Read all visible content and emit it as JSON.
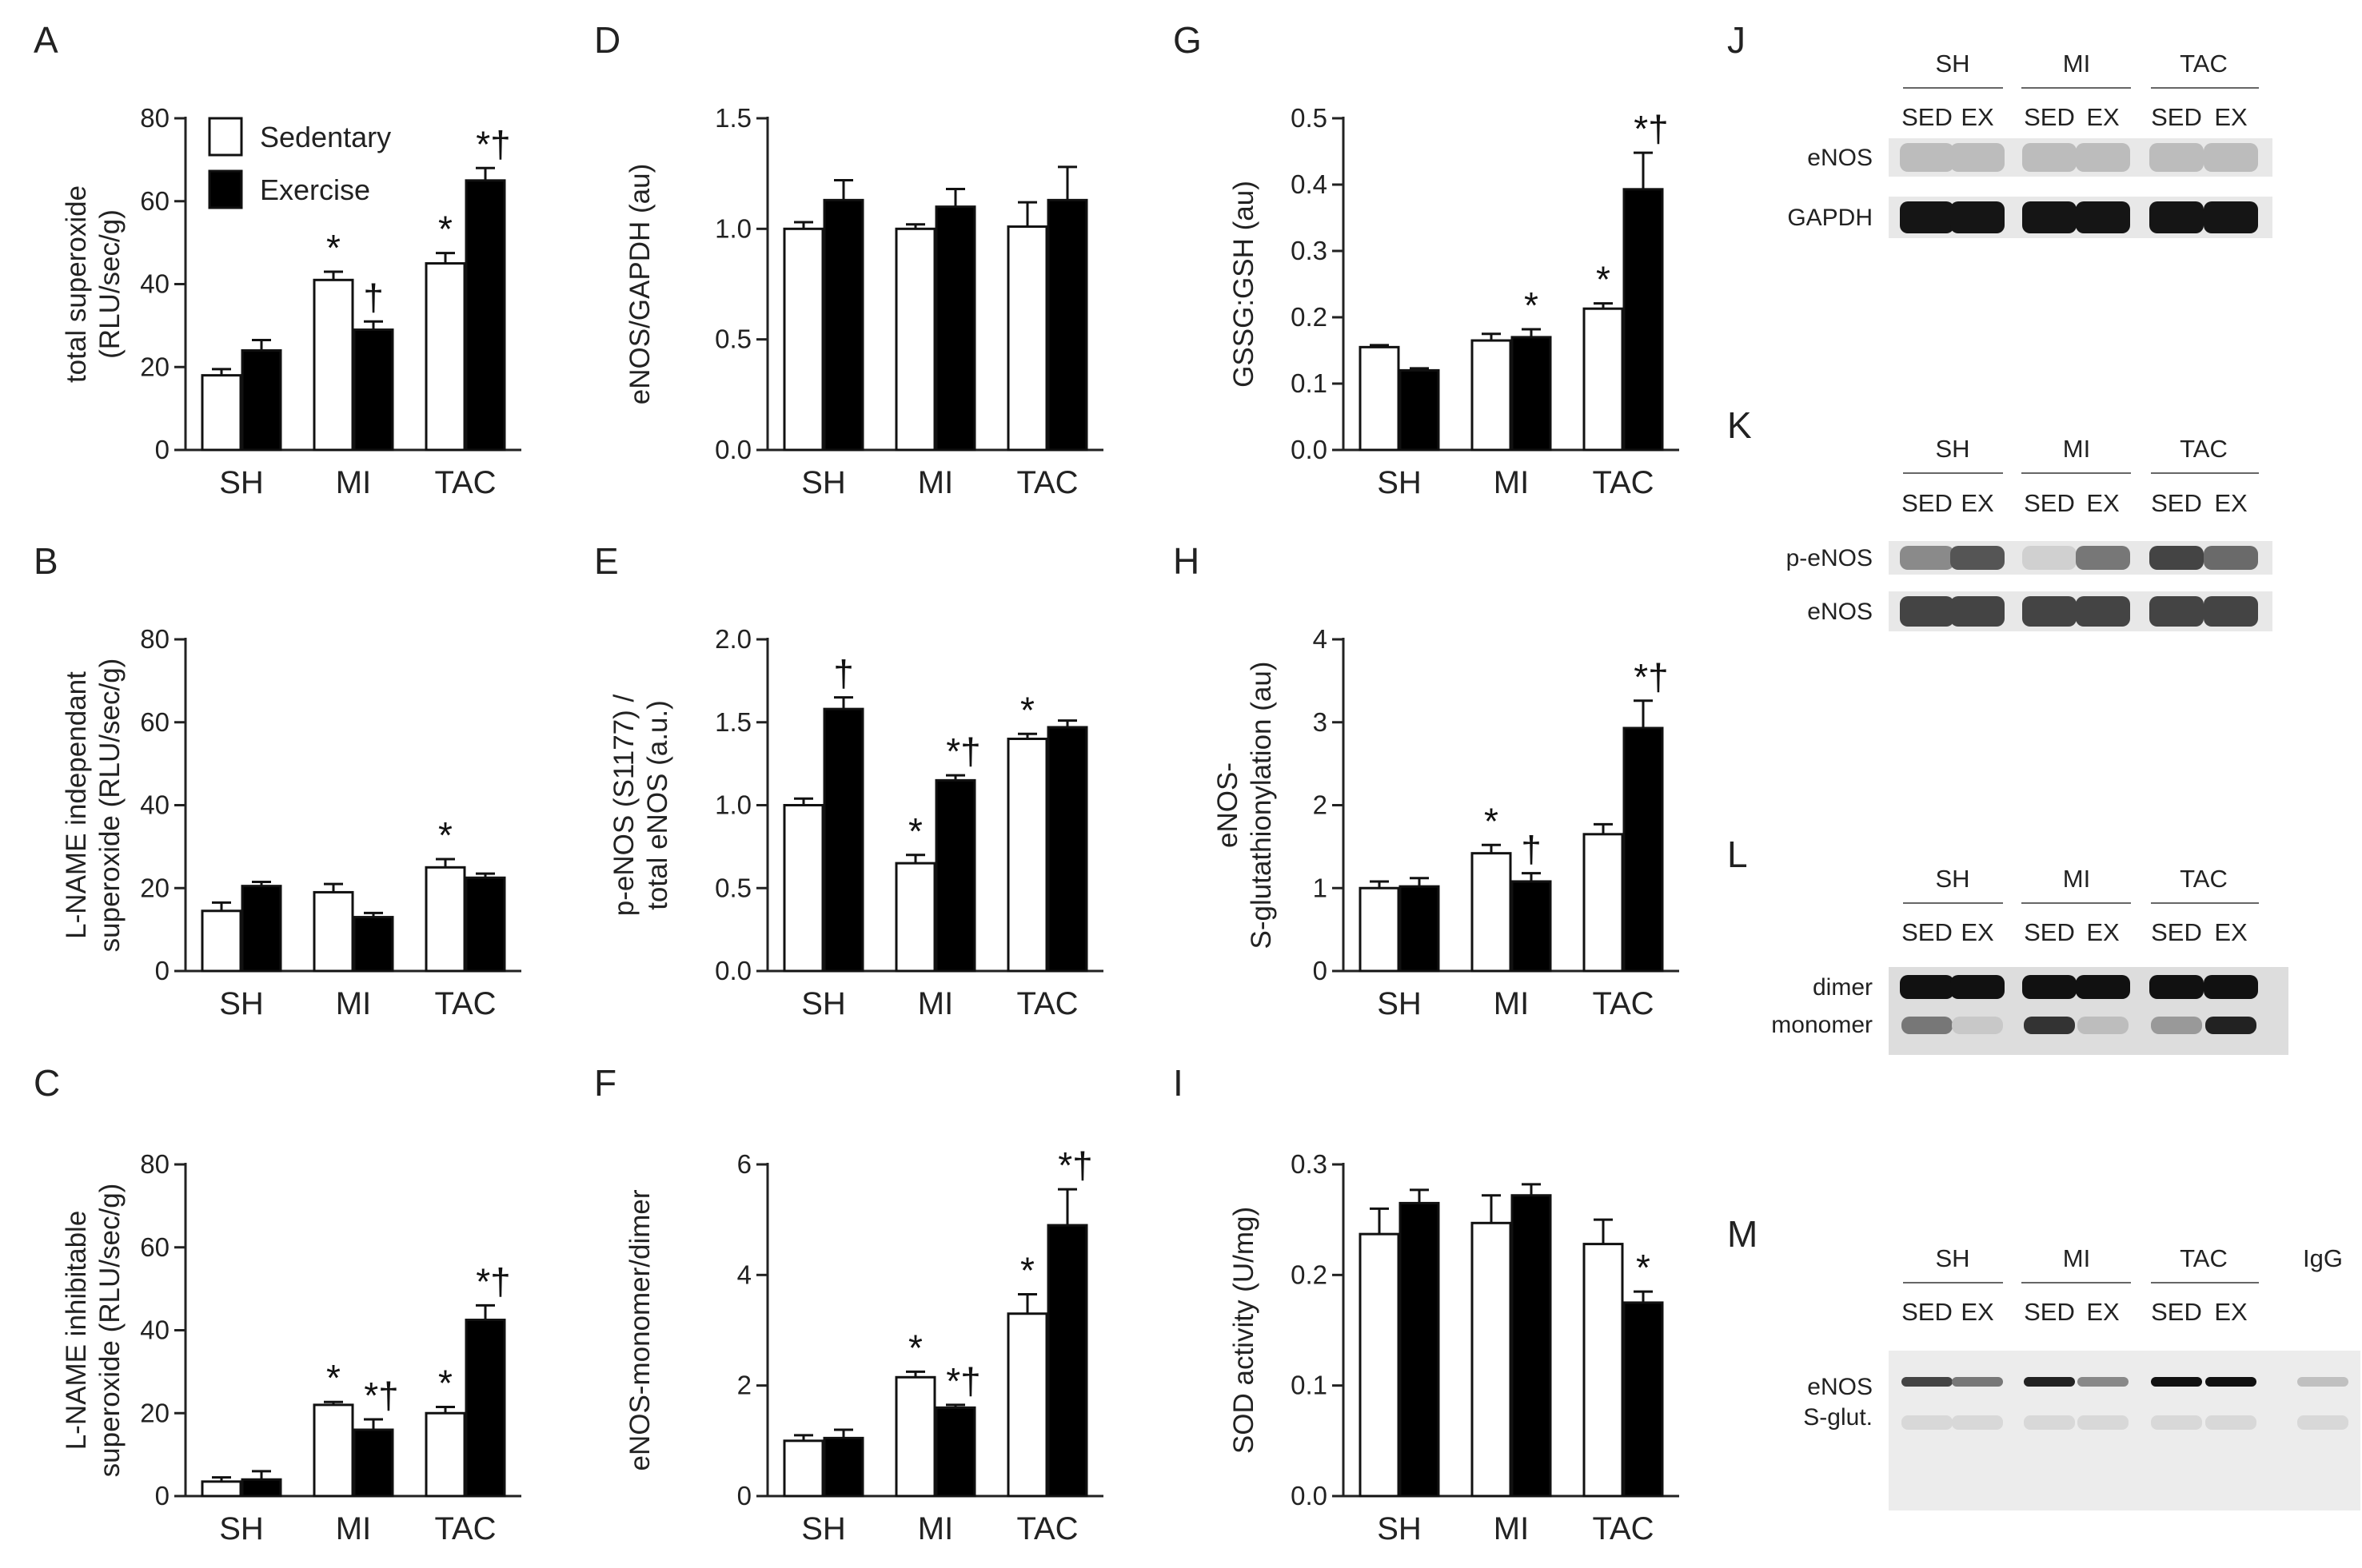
{
  "legend": {
    "sedentary": "Sedentary",
    "exercise": "Exercise"
  },
  "colors": {
    "sedentary": "#ffffff",
    "exercise": "#000000",
    "axis": "#222222"
  },
  "chart_data": [
    {
      "id": "A",
      "type": "bar",
      "ylabel": "total superoxide\n(RLU/sec/g)",
      "categories": [
        "SH",
        "MI",
        "TAC"
      ],
      "ylim": [
        0,
        80
      ],
      "yticks": [
        0,
        20,
        40,
        60,
        80
      ],
      "series": [
        {
          "name": "Sedentary",
          "values": [
            18,
            41,
            45
          ],
          "errors": [
            1.5,
            2,
            2.5
          ],
          "marks": [
            "",
            "*",
            "*"
          ]
        },
        {
          "name": "Exercise",
          "values": [
            24,
            29,
            65
          ],
          "errors": [
            2.5,
            2,
            3
          ],
          "marks": [
            "",
            "†",
            "*†"
          ]
        }
      ]
    },
    {
      "id": "B",
      "type": "bar",
      "ylabel": "L-NAME independant\nsuperoxide (RLU/sec/g)",
      "categories": [
        "SH",
        "MI",
        "TAC"
      ],
      "ylim": [
        0,
        80
      ],
      "yticks": [
        0,
        20,
        40,
        60,
        80
      ],
      "series": [
        {
          "name": "Sedentary",
          "values": [
            14.5,
            19,
            25
          ],
          "errors": [
            2,
            2,
            2
          ],
          "marks": [
            "",
            "",
            "*"
          ]
        },
        {
          "name": "Exercise",
          "values": [
            20.5,
            13,
            22.5
          ],
          "errors": [
            1,
            1,
            1
          ],
          "marks": [
            "",
            "",
            ""
          ]
        }
      ]
    },
    {
      "id": "C",
      "type": "bar",
      "ylabel": "L-NAME inhibitable\nsuperoxide (RLU/sec/g)",
      "categories": [
        "SH",
        "MI",
        "TAC"
      ],
      "ylim": [
        0,
        80
      ],
      "yticks": [
        0,
        20,
        40,
        60,
        80
      ],
      "series": [
        {
          "name": "Sedentary",
          "values": [
            3.5,
            22,
            20
          ],
          "errors": [
            1,
            0.7,
            1.5
          ],
          "marks": [
            "",
            "*",
            "*"
          ]
        },
        {
          "name": "Exercise",
          "values": [
            4,
            16,
            42.5
          ],
          "errors": [
            2,
            2.5,
            3.5
          ],
          "marks": [
            "",
            "*†",
            "*†"
          ]
        }
      ]
    },
    {
      "id": "D",
      "type": "bar",
      "ylabel": "eNOS/GAPDH (au)",
      "categories": [
        "SH",
        "MI",
        "TAC"
      ],
      "ylim": [
        0,
        1.5
      ],
      "yticks": [
        "0.0",
        "0.5",
        "1.0",
        "1.5"
      ],
      "series": [
        {
          "name": "Sedentary",
          "values": [
            1.0,
            1.0,
            1.01
          ],
          "errors": [
            0.03,
            0.02,
            0.11
          ],
          "marks": [
            "",
            "",
            ""
          ]
        },
        {
          "name": "Exercise",
          "values": [
            1.13,
            1.1,
            1.13
          ],
          "errors": [
            0.09,
            0.08,
            0.15
          ],
          "marks": [
            "",
            "",
            ""
          ]
        }
      ]
    },
    {
      "id": "E",
      "type": "bar",
      "ylabel": "p-eNOS (S1177) /\ntotal eNOS (a.u.)",
      "categories": [
        "SH",
        "MI",
        "TAC"
      ],
      "ylim": [
        0,
        2
      ],
      "yticks": [
        "0.0",
        "0.5",
        "1.0",
        "1.5",
        "2.0"
      ],
      "series": [
        {
          "name": "Sedentary",
          "values": [
            1.0,
            0.65,
            1.4
          ],
          "errors": [
            0.04,
            0.05,
            0.03
          ],
          "marks": [
            "",
            "*",
            "*"
          ]
        },
        {
          "name": "Exercise",
          "values": [
            1.58,
            1.15,
            1.47
          ],
          "errors": [
            0.07,
            0.03,
            0.04
          ],
          "marks": [
            "†",
            "*†",
            ""
          ]
        }
      ]
    },
    {
      "id": "F",
      "type": "bar",
      "ylabel": "eNOS-monomer/dimer",
      "categories": [
        "SH",
        "MI",
        "TAC"
      ],
      "ylim": [
        0,
        6
      ],
      "yticks": [
        0,
        2,
        4,
        6
      ],
      "series": [
        {
          "name": "Sedentary",
          "values": [
            1.0,
            2.15,
            3.3
          ],
          "errors": [
            0.1,
            0.1,
            0.35
          ],
          "marks": [
            "",
            "*",
            "*"
          ]
        },
        {
          "name": "Exercise",
          "values": [
            1.05,
            1.6,
            4.9
          ],
          "errors": [
            0.15,
            0.05,
            0.65
          ],
          "marks": [
            "",
            "*†",
            "*†"
          ]
        }
      ]
    },
    {
      "id": "G",
      "type": "bar",
      "ylabel": "GSSG:GSH (au)",
      "categories": [
        "SH",
        "MI",
        "TAC"
      ],
      "ylim": [
        0,
        0.5
      ],
      "yticks": [
        "0.0",
        "0.1",
        "0.2",
        "0.3",
        "0.4",
        "0.5"
      ],
      "series": [
        {
          "name": "Sedentary",
          "values": [
            0.155,
            0.165,
            0.213
          ],
          "errors": [
            0.003,
            0.01,
            0.008
          ],
          "marks": [
            "",
            "",
            "*"
          ]
        },
        {
          "name": "Exercise",
          "values": [
            0.12,
            0.17,
            0.393
          ],
          "errors": [
            0.003,
            0.012,
            0.055
          ],
          "marks": [
            "",
            "*",
            "*†"
          ]
        }
      ]
    },
    {
      "id": "H",
      "type": "bar",
      "ylabel": "eNOS-\nS-glutathionylation (au)",
      "categories": [
        "SH",
        "MI",
        "TAC"
      ],
      "ylim": [
        0,
        4
      ],
      "yticks": [
        0,
        1,
        2,
        3,
        4
      ],
      "series": [
        {
          "name": "Sedentary",
          "values": [
            1.0,
            1.42,
            1.65
          ],
          "errors": [
            0.08,
            0.1,
            0.12
          ],
          "marks": [
            "",
            "*",
            ""
          ]
        },
        {
          "name": "Exercise",
          "values": [
            1.02,
            1.08,
            2.93
          ],
          "errors": [
            0.1,
            0.1,
            0.33
          ],
          "marks": [
            "",
            "†",
            "*†"
          ]
        }
      ]
    },
    {
      "id": "I",
      "type": "bar",
      "ylabel": "SOD activity (U/mg)",
      "categories": [
        "SH",
        "MI",
        "TAC"
      ],
      "ylim": [
        0,
        0.3
      ],
      "yticks": [
        "0.0",
        "0.1",
        "0.2",
        "0.3"
      ],
      "series": [
        {
          "name": "Sedentary",
          "values": [
            0.237,
            0.247,
            0.228
          ],
          "errors": [
            0.023,
            0.025,
            0.022
          ],
          "marks": [
            "",
            "",
            ""
          ]
        },
        {
          "name": "Exercise",
          "values": [
            0.265,
            0.272,
            0.175
          ],
          "errors": [
            0.012,
            0.01,
            0.01
          ],
          "marks": [
            "",
            "",
            "*"
          ]
        }
      ]
    }
  ],
  "blots": [
    {
      "id": "J",
      "groups": [
        "SH",
        "MI",
        "TAC"
      ],
      "lanes": [
        "SED",
        "EX",
        "SED",
        "EX",
        "SED",
        "EX"
      ],
      "rows": [
        "eNOS",
        "GAPDH"
      ]
    },
    {
      "id": "K",
      "groups": [
        "SH",
        "MI",
        "TAC"
      ],
      "lanes": [
        "SED",
        "EX",
        "SED",
        "EX",
        "SED",
        "EX"
      ],
      "rows": [
        "p-eNOS",
        "eNOS"
      ]
    },
    {
      "id": "L",
      "groups": [
        "SH",
        "MI",
        "TAC"
      ],
      "lanes": [
        "SED",
        "EX",
        "SED",
        "EX",
        "SED",
        "EX"
      ],
      "rows": [
        "dimer",
        "monomer"
      ]
    },
    {
      "id": "M",
      "groups": [
        "SH",
        "MI",
        "TAC",
        "IgG"
      ],
      "lanes": [
        "SED",
        "EX",
        "SED",
        "EX",
        "SED",
        "EX"
      ],
      "rows": [
        "eNOS",
        "S-glut."
      ]
    }
  ]
}
